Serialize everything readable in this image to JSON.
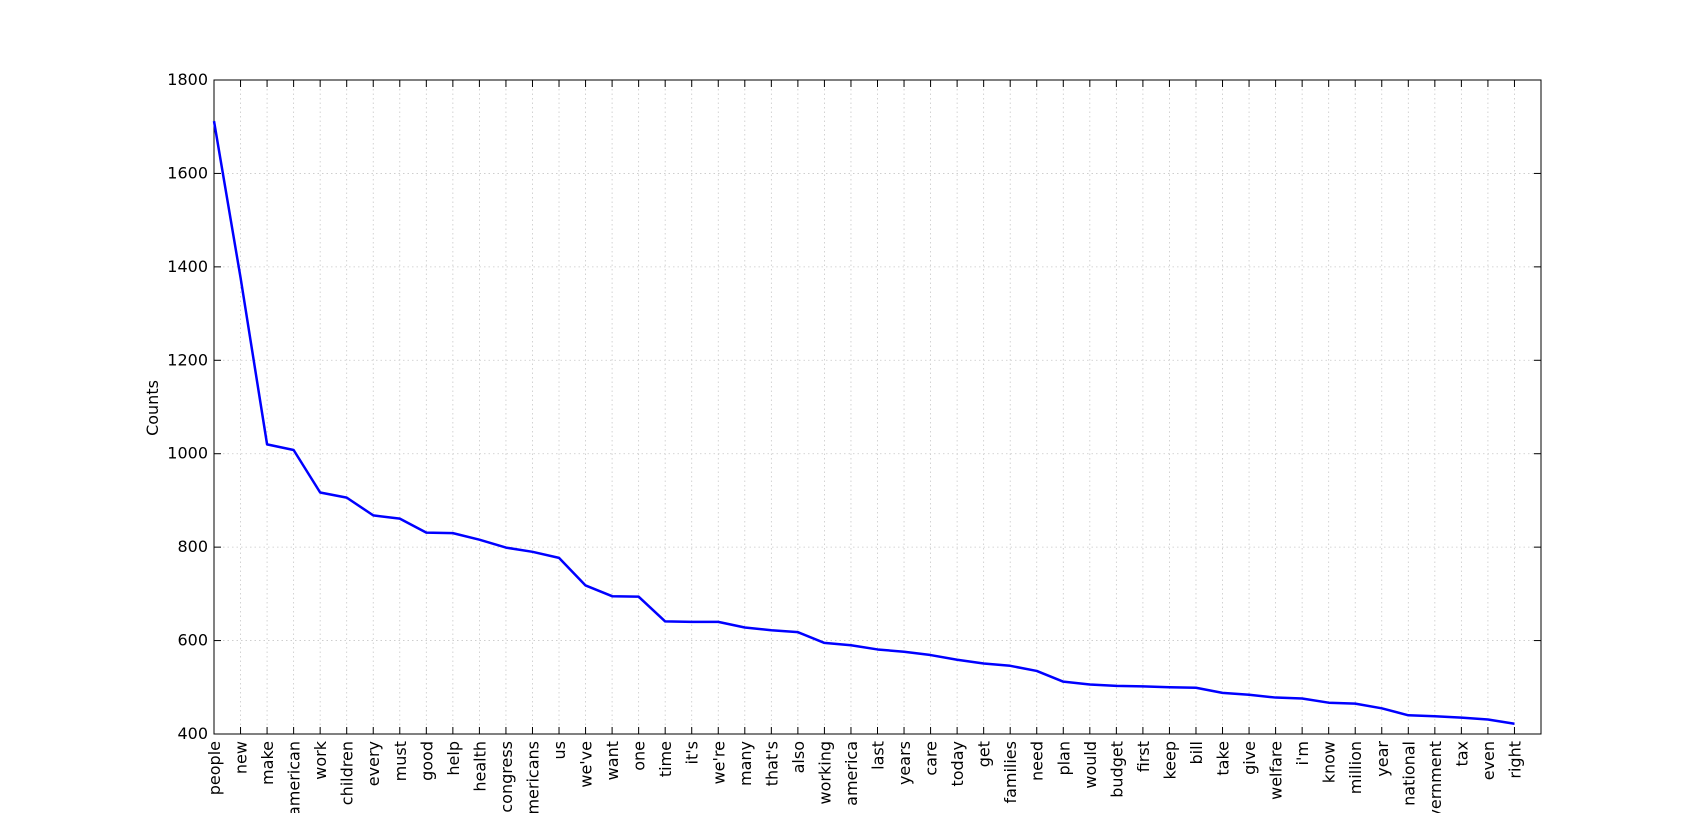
{
  "chart_data": {
    "type": "line",
    "ylabel": "Counts",
    "ylim": [
      400,
      1800
    ],
    "yticks": [
      400,
      600,
      800,
      1000,
      1200,
      1400,
      1600,
      1800
    ],
    "grid": true,
    "line_color": "#0000ff",
    "categories": [
      "people",
      "new",
      "make",
      "american",
      "work",
      "children",
      "every",
      "must",
      "good",
      "help",
      "health",
      "congress",
      "americans",
      "us",
      "we've",
      "want",
      "one",
      "time",
      "it's",
      "we're",
      "many",
      "that's",
      "also",
      "working",
      "america",
      "last",
      "years",
      "care",
      "today",
      "get",
      "families",
      "need",
      "plan",
      "would",
      "budget",
      "first",
      "keep",
      "bill",
      "take",
      "give",
      "welfare",
      "i'm",
      "know",
      "million",
      "year",
      "national",
      "government",
      "tax",
      "even",
      "right"
    ],
    "series": [
      {
        "values": [
          1712,
          1377,
          1020,
          1008,
          917,
          906,
          868,
          861,
          831,
          830,
          816,
          799,
          790,
          777,
          718,
          695,
          694,
          641,
          640,
          640,
          628,
          622,
          618,
          595,
          590,
          581,
          576,
          569,
          559,
          551,
          546,
          535,
          512,
          506,
          503,
          502,
          500,
          499,
          488,
          484,
          478,
          476,
          467,
          465,
          455,
          440,
          438,
          435,
          431,
          422
        ]
      }
    ]
  }
}
